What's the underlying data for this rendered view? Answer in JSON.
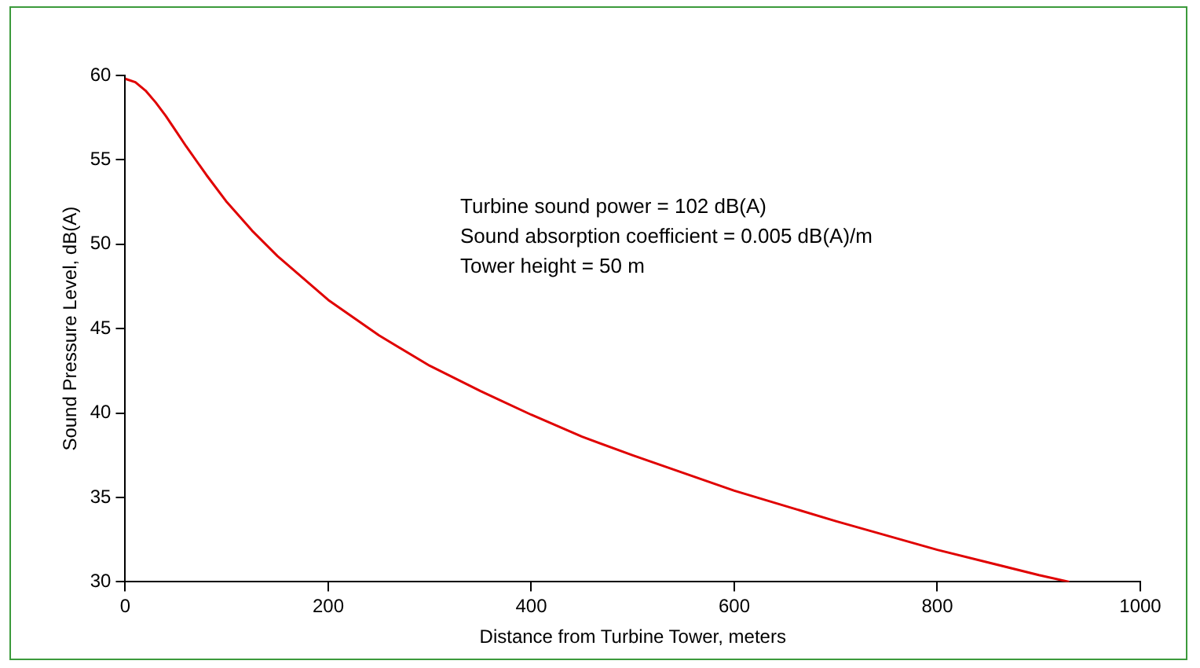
{
  "chart_data": {
    "type": "line",
    "xlabel": "Distance from Turbine Tower, meters",
    "ylabel": "Sound Pressure Level, dB(A)",
    "x": [
      0,
      10,
      20,
      30,
      40,
      50,
      60,
      80,
      100,
      125,
      150,
      200,
      250,
      300,
      350,
      400,
      450,
      500,
      600,
      700,
      800,
      900,
      930
    ],
    "series": [
      {
        "color": "#e00000",
        "values": [
          59.8,
          59.6,
          59.1,
          58.4,
          57.6,
          56.7,
          55.8,
          54.1,
          52.5,
          50.8,
          49.3,
          46.7,
          44.6,
          42.8,
          41.3,
          39.9,
          38.6,
          37.5,
          35.4,
          33.6,
          31.9,
          30.4,
          30.0
        ]
      }
    ],
    "xlim": [
      0,
      1000
    ],
    "xticks": [
      0,
      200,
      400,
      600,
      800,
      1000
    ],
    "ylim": [
      30,
      60
    ],
    "yticks": [
      30,
      35,
      40,
      45,
      50,
      55,
      60
    ],
    "grid": false,
    "legend": false,
    "marker": "none",
    "line_style": "solid",
    "annotations": [
      "Turbine sound power = 102 dB(A)",
      "Sound absorption coefficient = 0.005 dB(A)/m",
      "Tower height = 50 m"
    ]
  }
}
